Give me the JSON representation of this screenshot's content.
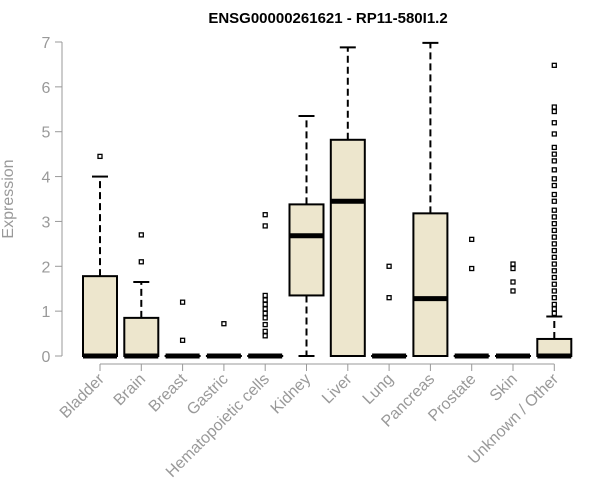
{
  "chart_data": {
    "type": "boxplot",
    "title": "ENSG00000261621 - RP11-580I1.2",
    "xlabel": "",
    "ylabel": "Expression",
    "ylim": [
      0,
      7
    ],
    "yticks": [
      0,
      1,
      2,
      3,
      4,
      5,
      6,
      7
    ],
    "categories": [
      "Bladder",
      "Brain",
      "Breast",
      "Gastric",
      "Hematopoietic cells",
      "Kidney",
      "Liver",
      "Lung",
      "Pancreas",
      "Prostate",
      "Skin",
      "Unknown / Other"
    ],
    "boxes": [
      {
        "name": "Bladder",
        "min": 0,
        "q1": 0,
        "median": 0,
        "q3": 1.78,
        "max": 4.0,
        "outliers": [
          4.45
        ]
      },
      {
        "name": "Brain",
        "min": 0,
        "q1": 0,
        "median": 0,
        "q3": 0.85,
        "max": 1.65,
        "outliers": [
          2.1,
          2.7
        ]
      },
      {
        "name": "Breast",
        "min": 0,
        "q1": 0,
        "median": 0,
        "q3": 0,
        "max": 0,
        "outliers": [
          0.35,
          1.2
        ]
      },
      {
        "name": "Gastric",
        "min": 0,
        "q1": 0,
        "median": 0,
        "q3": 0,
        "max": 0,
        "outliers": [
          0.72
        ]
      },
      {
        "name": "Hematopoietic cells",
        "min": 0,
        "q1": 0,
        "median": 0,
        "q3": 0,
        "max": 0,
        "outliers": [
          0.45,
          0.55,
          0.7,
          0.85,
          0.95,
          1.05,
          1.15,
          1.25,
          1.35,
          2.9,
          3.15
        ]
      },
      {
        "name": "Kidney",
        "min": 0,
        "q1": 1.35,
        "median": 2.68,
        "q3": 3.38,
        "max": 5.35,
        "outliers": []
      },
      {
        "name": "Liver",
        "min": 0,
        "q1": 0,
        "median": 3.45,
        "q3": 4.82,
        "max": 6.88,
        "outliers": []
      },
      {
        "name": "Lung",
        "min": 0,
        "q1": 0,
        "median": 0,
        "q3": 0,
        "max": 0,
        "outliers": [
          1.3,
          2.0
        ]
      },
      {
        "name": "Pancreas",
        "min": 0,
        "q1": 0,
        "median": 1.28,
        "q3": 3.18,
        "max": 6.98,
        "outliers": []
      },
      {
        "name": "Prostate",
        "min": 0,
        "q1": 0,
        "median": 0,
        "q3": 0,
        "max": 0,
        "outliers": [
          1.95,
          2.6
        ]
      },
      {
        "name": "Skin",
        "min": 0,
        "q1": 0,
        "median": 0,
        "q3": 0,
        "max": 0,
        "outliers": [
          1.45,
          1.65,
          1.95,
          2.05
        ]
      },
      {
        "name": "Unknown / Other",
        "min": 0,
        "q1": 0,
        "median": 0,
        "q3": 0.38,
        "max": 0.88,
        "outliers": [
          0.95,
          1.05,
          1.15,
          1.3,
          1.45,
          1.6,
          1.75,
          1.9,
          2.05,
          2.2,
          2.35,
          2.5,
          2.65,
          2.8,
          2.95,
          3.1,
          3.25,
          3.45,
          3.6,
          3.8,
          3.95,
          4.15,
          4.35,
          4.5,
          4.65,
          4.95,
          5.2,
          5.45,
          5.55,
          6.48
        ]
      }
    ],
    "box_fill": "#ede6cd",
    "box_stroke": "#000000",
    "axis_color": "#999999",
    "grid": false,
    "legend": "none"
  }
}
